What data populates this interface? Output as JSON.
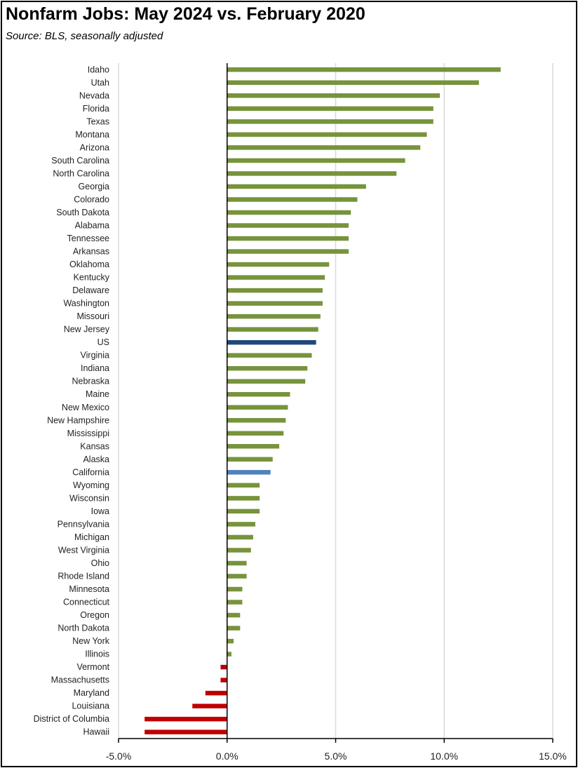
{
  "title": "Nonfarm Jobs:  May 2024 vs. February 2020",
  "subtitle": "Source:  BLS, seasonally adjusted",
  "colors": {
    "positive": "#77933C",
    "negative": "#C00000",
    "us": "#1F497D",
    "california": "#4F81BD",
    "grid": "#D9D9D9",
    "axis": "#000000"
  },
  "chart_data": {
    "type": "bar",
    "orientation": "horizontal",
    "title": "Nonfarm Jobs:  May 2024 vs. February 2020",
    "subtitle": "Source:  BLS, seasonally adjusted",
    "xlim": [
      -0.05,
      0.15
    ],
    "xticks": [
      -0.05,
      0,
      0.05,
      0.1,
      0.15
    ],
    "xtick_labels": [
      "-5.0%",
      "0.0%",
      "5.0%",
      "10.0%",
      "15.0%"
    ],
    "grid": "vertical",
    "categories": [
      "Idaho",
      "Utah",
      "Nevada",
      "Florida",
      "Texas",
      "Montana",
      "Arizona",
      "South Carolina",
      "North Carolina",
      "Georgia",
      "Colorado",
      "South Dakota",
      "Alabama",
      "Tennessee",
      "Arkansas",
      "Oklahoma",
      "Kentucky",
      "Delaware",
      "Washington",
      "Missouri",
      "New Jersey",
      "US",
      "Virginia",
      "Indiana",
      "Nebraska",
      "Maine",
      "New Mexico",
      "New Hampshire",
      "Mississippi",
      "Kansas",
      "Alaska",
      "California",
      "Wyoming",
      "Wisconsin",
      "Iowa",
      "Pennsylvania",
      "Michigan",
      "West Virginia",
      "Ohio",
      "Rhode Island",
      "Minnesota",
      "Connecticut",
      "Oregon",
      "North Dakota",
      "New York",
      "Illinois",
      "Vermont",
      "Massachusetts",
      "Maryland",
      "Louisiana",
      "District of Columbia",
      "Hawaii"
    ],
    "values": [
      0.126,
      0.116,
      0.098,
      0.095,
      0.095,
      0.092,
      0.089,
      0.082,
      0.078,
      0.064,
      0.06,
      0.057,
      0.056,
      0.056,
      0.056,
      0.047,
      0.045,
      0.044,
      0.044,
      0.043,
      0.042,
      0.041,
      0.039,
      0.037,
      0.036,
      0.029,
      0.028,
      0.027,
      0.026,
      0.024,
      0.021,
      0.02,
      0.015,
      0.015,
      0.015,
      0.013,
      0.012,
      0.011,
      0.009,
      0.009,
      0.007,
      0.007,
      0.006,
      0.006,
      0.003,
      0.002,
      -0.003,
      -0.003,
      -0.01,
      -0.016,
      -0.038,
      -0.038
    ]
  }
}
